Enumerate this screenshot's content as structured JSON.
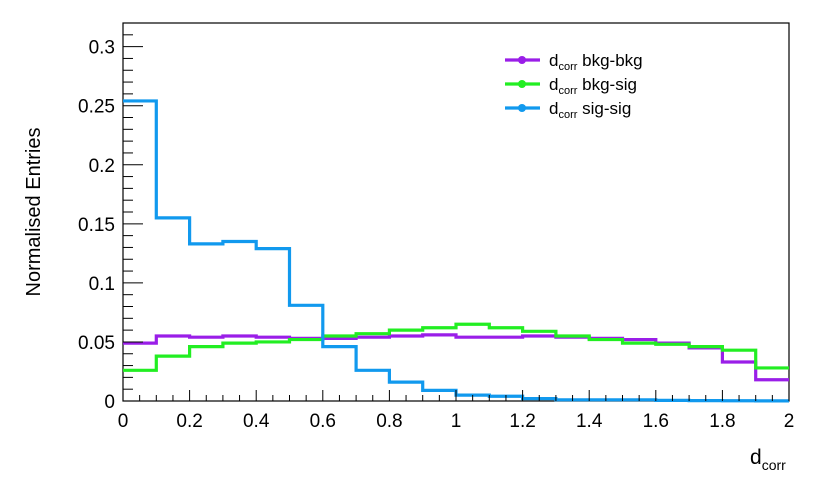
{
  "chart_data": {
    "type": "line",
    "step": true,
    "title": "",
    "xlabel_main": "d",
    "xlabel_sub": "corr",
    "ylabel": "Normalised Entries",
    "xlim": [
      0,
      2
    ],
    "ylim": [
      0,
      0.32
    ],
    "xticks": [
      0,
      0.2,
      0.4,
      0.6,
      0.8,
      1,
      1.2,
      1.4,
      1.6,
      1.8,
      2
    ],
    "xtick_labels": [
      "0",
      "0.2",
      "0.4",
      "0.6",
      "0.8",
      "1",
      "1.2",
      "1.4",
      "1.6",
      "1.8",
      "2"
    ],
    "yticks": [
      0,
      0.05,
      0.1,
      0.15,
      0.2,
      0.25,
      0.3
    ],
    "ytick_labels": [
      "0",
      "0.05",
      "0.1",
      "0.15",
      "0.2",
      "0.25",
      "0.3"
    ],
    "grid": false,
    "legend_position": "top-right",
    "bin_edges": [
      0,
      0.1,
      0.2,
      0.3,
      0.4,
      0.5,
      0.6,
      0.7,
      0.8,
      0.9,
      1.0,
      1.1,
      1.2,
      1.3,
      1.4,
      1.5,
      1.6,
      1.7,
      1.8,
      1.9,
      2.0
    ],
    "series": [
      {
        "name_main": "d",
        "name_sub": "corr",
        "name_rest": " bkg-bkg",
        "color": "#9a1ee8",
        "values": [
          0.049,
          0.055,
          0.054,
          0.055,
          0.054,
          0.053,
          0.053,
          0.054,
          0.055,
          0.056,
          0.054,
          0.054,
          0.055,
          0.054,
          0.053,
          0.052,
          0.049,
          0.045,
          0.033,
          0.018
        ]
      },
      {
        "name_main": "d",
        "name_sub": "corr",
        "name_rest": " bkg-sig",
        "color": "#22ee22",
        "values": [
          0.026,
          0.038,
          0.046,
          0.049,
          0.05,
          0.052,
          0.055,
          0.057,
          0.06,
          0.062,
          0.065,
          0.062,
          0.059,
          0.055,
          0.052,
          0.049,
          0.048,
          0.046,
          0.043,
          0.028
        ]
      },
      {
        "name_main": "d",
        "name_sub": "corr",
        "name_rest": " sig-sig",
        "color": "#1199ee",
        "values": [
          0.254,
          0.155,
          0.133,
          0.135,
          0.129,
          0.081,
          0.046,
          0.026,
          0.016,
          0.009,
          0.005,
          0.004,
          0.002,
          0.001,
          0.001,
          0.001,
          0.0005,
          0.0003,
          0.0002,
          0.0001
        ]
      }
    ]
  }
}
